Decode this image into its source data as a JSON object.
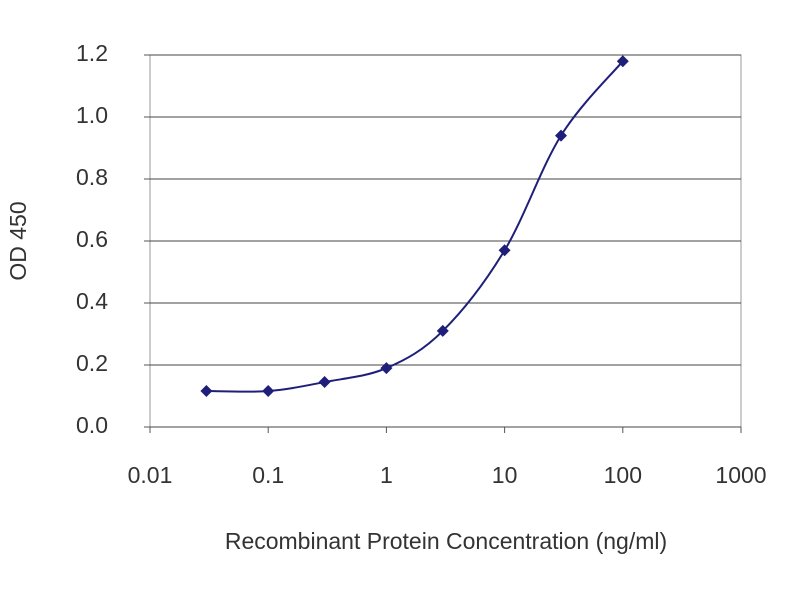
{
  "chart_data": {
    "type": "line",
    "x_label": "Recombinant Protein Concentration (ng/ml)",
    "y_label": "OD 450",
    "x": [
      0.03,
      0.1,
      0.3,
      1,
      3,
      10,
      30,
      100
    ],
    "series": [
      {
        "color": "#1f1f7a",
        "values": [
          0.116,
          0.116,
          0.145,
          0.19,
          0.31,
          0.57,
          0.94,
          1.18
        ]
      }
    ],
    "x_scale": "log",
    "xlim": [
      0.01,
      1000
    ],
    "xticks": [
      0.01,
      0.1,
      1,
      10,
      100,
      1000
    ],
    "ylim": [
      0,
      1.2
    ],
    "yticks": [
      {
        "value": 0,
        "label": "0.0"
      },
      0.2,
      0.4,
      0.6,
      0.8,
      {
        "value": 1,
        "label": "1.0"
      },
      1.2
    ],
    "grid": true
  }
}
